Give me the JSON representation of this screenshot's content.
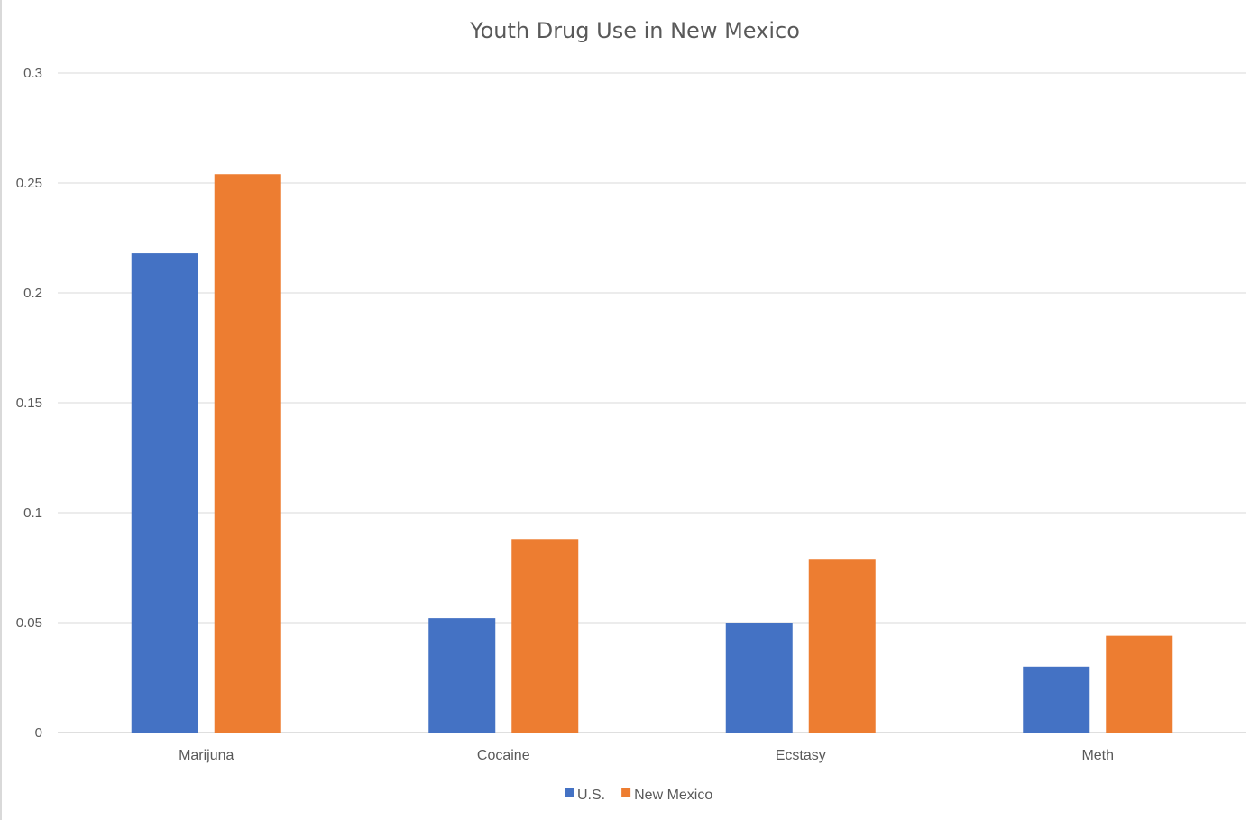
{
  "chart_data": {
    "type": "bar",
    "title": "Youth Drug Use in New Mexico",
    "categories": [
      "Marijuna",
      "Cocaine",
      "Ecstasy",
      "Meth"
    ],
    "series": [
      {
        "name": "U.S.",
        "values": [
          0.218,
          0.052,
          0.05,
          0.03
        ],
        "color": "#4472C4"
      },
      {
        "name": "New Mexico",
        "values": [
          0.254,
          0.088,
          0.079,
          0.044
        ],
        "color": "#ED7D31"
      }
    ],
    "ylim": [
      0,
      0.3
    ],
    "yticks": [
      "0",
      "0.05",
      "0.1",
      "0.15",
      "0.2",
      "0.25",
      "0.3"
    ],
    "xlabel": "",
    "ylabel": "",
    "grid": true,
    "legend": "bottom"
  }
}
